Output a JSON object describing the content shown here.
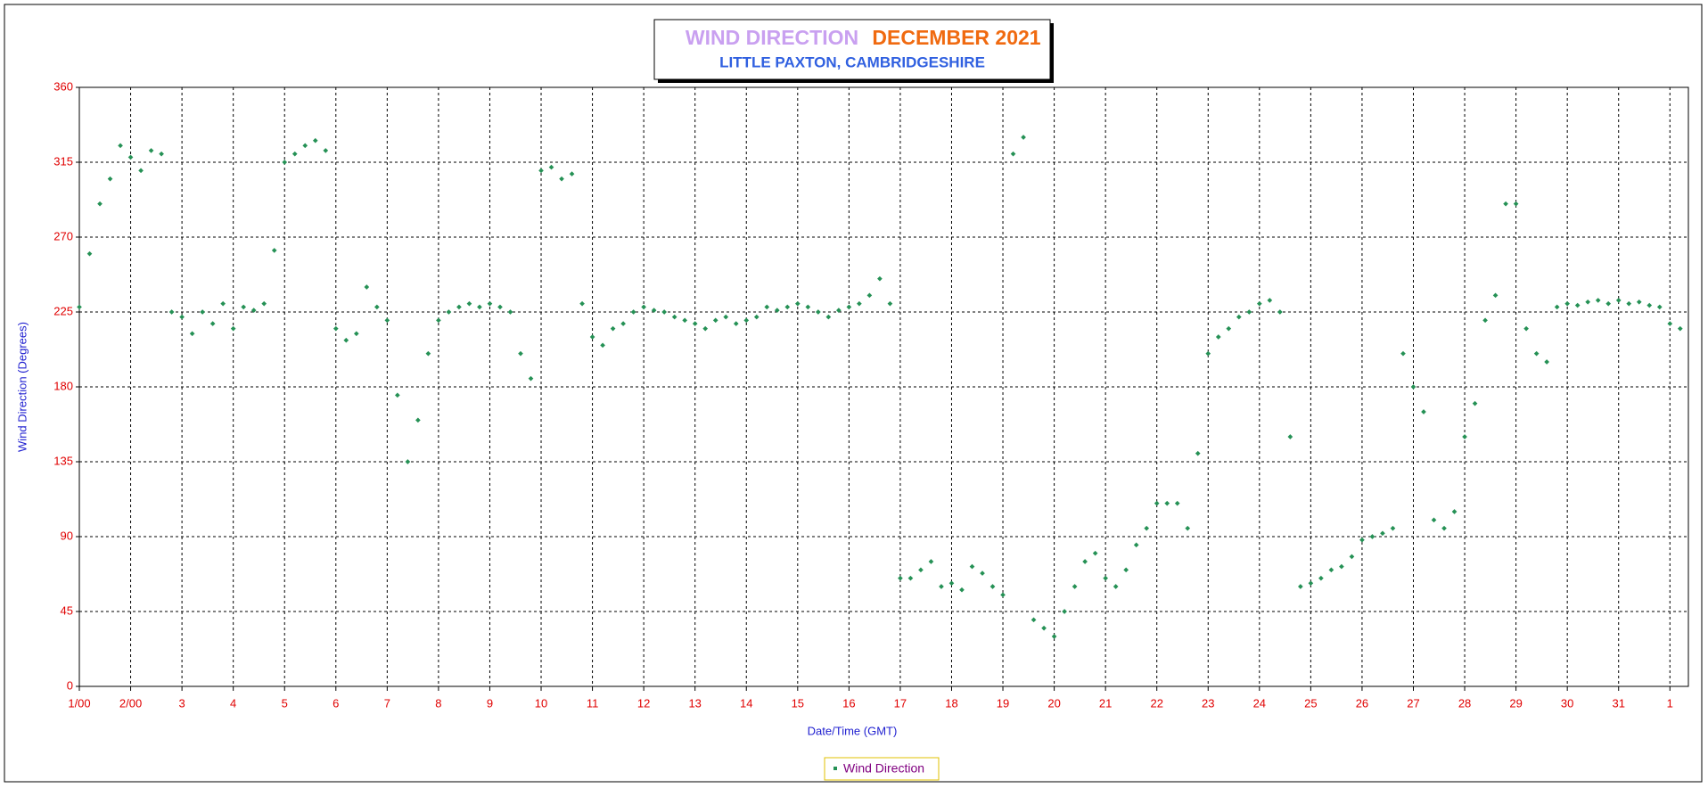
{
  "chart_data": {
    "type": "scatter",
    "title": "WIND DIRECTION",
    "title_month": "DECEMBER 2021",
    "subtitle": "LITTLE PAXTON, CAMBRIDGESHIRE",
    "xlabel": "Date/Time (GMT)",
    "ylabel": "Wind Direction (Degrees)",
    "xlim": [
      1,
      32.36
    ],
    "ylim": [
      0,
      360
    ],
    "xticks": [
      {
        "value": 1,
        "label": "1/00"
      },
      {
        "value": 2,
        "label": "2/00"
      },
      3,
      4,
      5,
      6,
      7,
      8,
      9,
      10,
      11,
      12,
      13,
      14,
      15,
      16,
      17,
      18,
      19,
      20,
      21,
      22,
      23,
      24,
      25,
      26,
      27,
      28,
      29,
      30,
      31,
      {
        "value": 32,
        "label": "1"
      }
    ],
    "yticks": [
      0,
      45,
      90,
      135,
      180,
      225,
      270,
      315,
      360
    ],
    "grid": true,
    "legend": "bottom",
    "series": [
      {
        "name": "Wind Direction",
        "color": "#259155",
        "x": [
          1,
          1.2,
          1.4,
          1.6,
          1.8,
          2,
          2.2,
          2.4,
          2.6,
          2.8,
          3,
          3.2,
          3.4,
          3.6,
          3.8,
          4,
          4.2,
          4.4,
          4.6,
          4.8,
          5,
          5.2,
          5.4,
          5.6,
          5.8,
          6,
          6.2,
          6.4,
          6.6,
          6.8,
          7,
          7.2,
          7.4,
          7.6,
          7.8,
          8,
          8.2,
          8.4,
          8.6,
          8.8,
          9,
          9.2,
          9.4,
          9.6,
          9.8,
          10,
          10.2,
          10.4,
          10.6,
          10.8,
          11,
          11.2,
          11.4,
          11.6,
          11.8,
          12,
          12.2,
          12.4,
          12.6,
          12.8,
          13,
          13.2,
          13.4,
          13.6,
          13.8,
          14,
          14.2,
          14.4,
          14.6,
          14.8,
          15,
          15.2,
          15.4,
          15.6,
          15.8,
          16,
          16.2,
          16.4,
          16.6,
          16.8,
          17,
          17.2,
          17.4,
          17.6,
          17.8,
          18,
          18.2,
          18.4,
          18.6,
          18.8,
          19,
          19.2,
          19.4,
          19.6,
          19.8,
          20,
          20.2,
          20.4,
          20.6,
          20.8,
          21,
          21.2,
          21.4,
          21.6,
          21.8,
          22,
          22.2,
          22.4,
          22.6,
          22.8,
          23,
          23.2,
          23.4,
          23.6,
          23.8,
          24,
          24.2,
          24.4,
          24.6,
          24.8,
          25,
          25.2,
          25.4,
          25.6,
          25.8,
          26,
          26.2,
          26.4,
          26.6,
          26.8,
          27,
          27.2,
          27.4,
          27.6,
          27.8,
          28,
          28.2,
          28.4,
          28.6,
          28.8,
          29,
          29.2,
          29.4,
          29.6,
          29.8,
          30,
          30.2,
          30.4,
          30.6,
          30.8,
          31,
          31.2,
          31.4,
          31.6,
          31.8,
          32,
          32.2
        ],
        "values": [
          228,
          260,
          290,
          305,
          325,
          318,
          310,
          322,
          320,
          225,
          222,
          212,
          225,
          218,
          230,
          215,
          228,
          226,
          230,
          262,
          315,
          320,
          325,
          328,
          322,
          215,
          208,
          212,
          240,
          228,
          220,
          175,
          135,
          160,
          200,
          220,
          225,
          228,
          230,
          228,
          230,
          228,
          225,
          200,
          185,
          310,
          312,
          305,
          308,
          230,
          210,
          205,
          215,
          218,
          225,
          228,
          226,
          225,
          222,
          220,
          218,
          215,
          220,
          222,
          218,
          220,
          222,
          228,
          226,
          228,
          230,
          228,
          225,
          222,
          226,
          228,
          230,
          235,
          245,
          230,
          65,
          65,
          70,
          75,
          60,
          62,
          58,
          72,
          68,
          60,
          55,
          320,
          330,
          40,
          35,
          30,
          45,
          60,
          75,
          80,
          65,
          60,
          70,
          85,
          95,
          110,
          110,
          110,
          95,
          140,
          200,
          210,
          215,
          222,
          225,
          230,
          232,
          225,
          150,
          60,
          62,
          65,
          70,
          72,
          78,
          88,
          90,
          92,
          95,
          200,
          180,
          165,
          100,
          95,
          105,
          150,
          170,
          220,
          235,
          290,
          290,
          215,
          200,
          195,
          228,
          230,
          229,
          231,
          232,
          230,
          232,
          230,
          231,
          229,
          228,
          218,
          215
        ]
      }
    ]
  }
}
